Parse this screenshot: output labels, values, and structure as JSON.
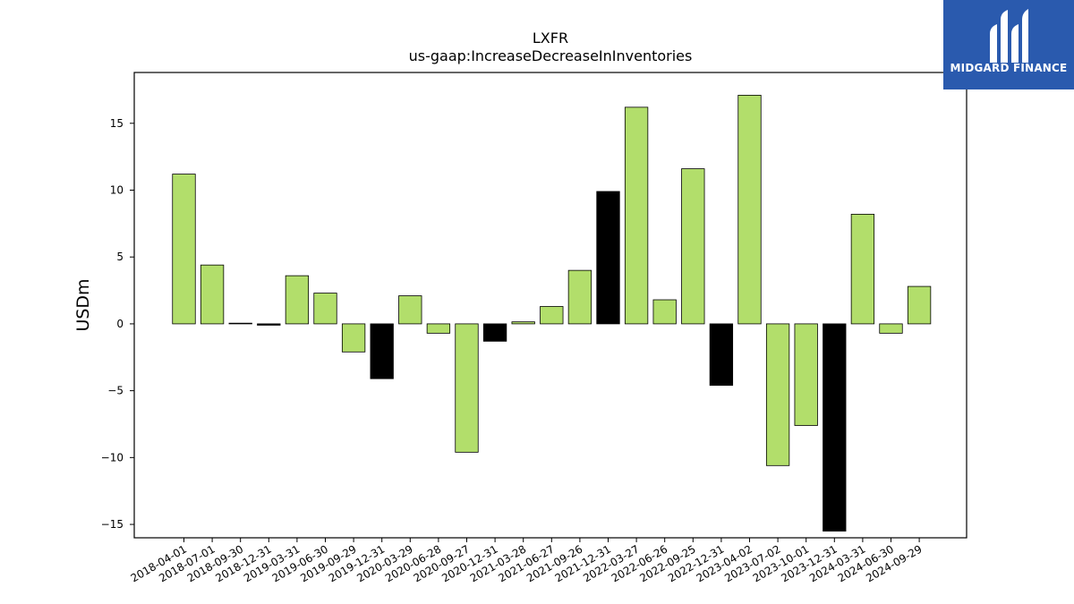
{
  "chart_data": {
    "type": "bar",
    "title": "LXFR",
    "subtitle": "us-gaap:IncreaseDecreaseInInventories",
    "xlabel": "",
    "ylabel": "USDm",
    "ylim": [
      -16,
      18.8
    ],
    "yticks": [
      -15,
      -10,
      -5,
      0,
      5,
      10,
      15
    ],
    "ytick_labels": [
      "−15",
      "−10",
      "−5",
      "0",
      "5",
      "10",
      "15"
    ],
    "grid": false,
    "colors": {
      "default": "#b2de6b",
      "highlight": "#000000",
      "edge": "#000000"
    },
    "categories": [
      "2018-04-01",
      "2018-07-01",
      "2018-09-30",
      "2018-12-31",
      "2019-03-31",
      "2019-06-30",
      "2019-09-29",
      "2019-12-31",
      "2020-03-29",
      "2020-06-28",
      "2020-09-27",
      "2020-12-31",
      "2021-03-28",
      "2021-06-27",
      "2021-09-26",
      "2021-12-31",
      "2022-03-27",
      "2022-06-26",
      "2022-09-25",
      "2022-12-31",
      "2023-04-02",
      "2023-07-02",
      "2023-10-01",
      "2023-12-31",
      "2024-03-31",
      "2024-06-30",
      "2024-09-29"
    ],
    "values": [
      11.2,
      4.4,
      0.05,
      -0.1,
      3.6,
      2.3,
      -2.1,
      -4.1,
      2.1,
      -0.7,
      -9.6,
      -1.3,
      0.15,
      1.3,
      4.0,
      9.9,
      16.2,
      1.8,
      11.6,
      -4.6,
      17.1,
      -10.6,
      -7.6,
      -15.5,
      8.2,
      -0.7,
      2.8
    ],
    "highlight": [
      false,
      false,
      false,
      true,
      false,
      false,
      false,
      true,
      false,
      false,
      false,
      true,
      false,
      false,
      false,
      true,
      false,
      false,
      false,
      true,
      false,
      false,
      false,
      true,
      false,
      false,
      false
    ]
  },
  "logo": {
    "text": "MIDGARD FINANCE"
  }
}
